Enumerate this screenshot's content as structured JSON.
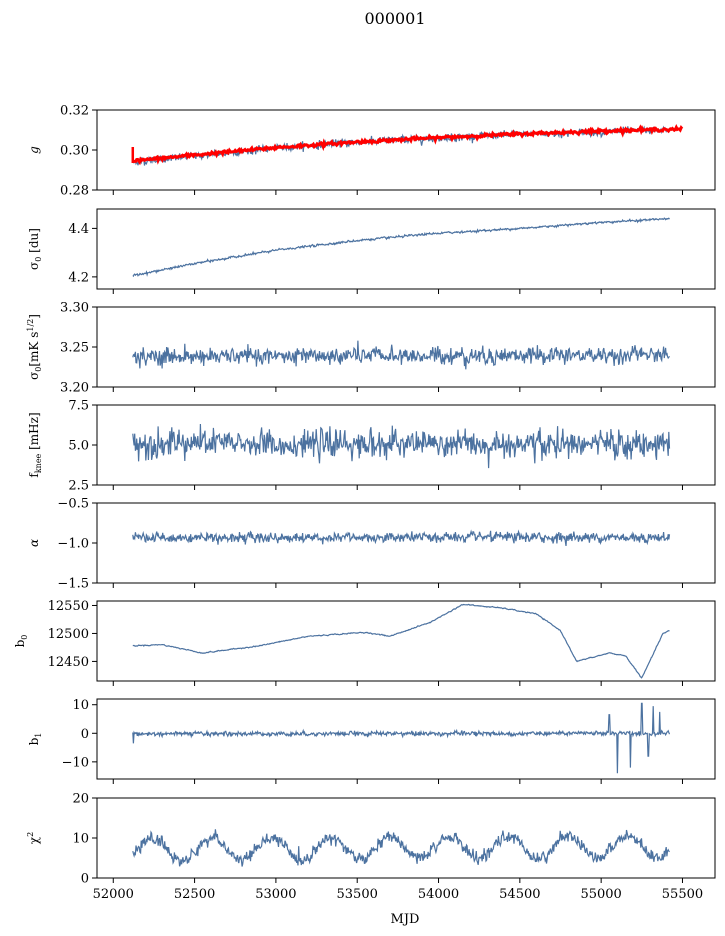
{
  "chart_data": {
    "title": "000001",
    "xlabel": "MJD",
    "xlim": [
      51900,
      55700
    ],
    "xticks": [
      52000,
      52500,
      53000,
      53500,
      54000,
      54500,
      55000,
      55500
    ],
    "x_range": [
      52120,
      55420
    ],
    "colors": {
      "series": "#4c72a0",
      "model": "#ff0000"
    },
    "panels": [
      {
        "id": "g",
        "type": "line",
        "ylabel": "g",
        "ylim": [
          0.28,
          0.32
        ],
        "yticks": [
          "0.28",
          "0.30",
          "0.32"
        ],
        "ytick_values": [
          0.28,
          0.3,
          0.32
        ],
        "trend": [
          [
            52120,
            0.294
          ],
          [
            52500,
            0.297
          ],
          [
            53000,
            0.301
          ],
          [
            53500,
            0.304
          ],
          [
            54000,
            0.306
          ],
          [
            54500,
            0.308
          ],
          [
            55000,
            0.309
          ],
          [
            55420,
            0.31
          ]
        ],
        "noise": 0.0012,
        "model": {
          "name": "fit",
          "color": "#ff0000",
          "trend": [
            [
              52120,
              0.2945
            ],
            [
              52500,
              0.2975
            ],
            [
              53000,
              0.3012
            ],
            [
              53500,
              0.304
            ],
            [
              54000,
              0.3062
            ],
            [
              54500,
              0.308
            ],
            [
              55000,
              0.3095
            ],
            [
              55500,
              0.3105
            ]
          ],
          "spike_at": 52120,
          "spike_range": [
            0.2935,
            0.3015
          ]
        }
      },
      {
        "id": "sigma0",
        "type": "line",
        "ylabel": "σ0 [du]",
        "ylim": [
          4.15,
          4.48
        ],
        "yticks": [
          "4.2",
          "4.4"
        ],
        "ytick_values": [
          4.2,
          4.4
        ],
        "trend": [
          [
            52120,
            4.205
          ],
          [
            52500,
            4.255
          ],
          [
            53000,
            4.31
          ],
          [
            53500,
            4.35
          ],
          [
            54000,
            4.38
          ],
          [
            54500,
            4.4
          ],
          [
            55000,
            4.425
          ],
          [
            55420,
            4.44
          ]
        ],
        "noise": 0.003
      },
      {
        "id": "sigma0_mK",
        "type": "line",
        "ylabel": "σ0[mK s1/2]",
        "ylim": [
          3.2,
          3.3
        ],
        "yticks": [
          "3.20",
          "3.25",
          "3.30"
        ],
        "ytick_values": [
          3.2,
          3.25,
          3.3
        ],
        "trend": [
          [
            52120,
            3.238
          ],
          [
            55420,
            3.24
          ]
        ],
        "noise": 0.007
      },
      {
        "id": "fknee",
        "type": "line",
        "ylabel": "fknee [mHz]",
        "ylim": [
          2.5,
          7.5
        ],
        "yticks": [
          "2.5",
          "5.0",
          "7.5"
        ],
        "ytick_values": [
          2.5,
          5.0,
          7.5
        ],
        "trend": [
          [
            52120,
            5.1
          ],
          [
            55420,
            5.0
          ]
        ],
        "noise": 0.55
      },
      {
        "id": "alpha",
        "type": "line",
        "ylabel": "α",
        "ylim": [
          -1.5,
          -0.5
        ],
        "yticks": [
          "−1.5",
          "−1.0",
          "−0.5"
        ],
        "ytick_values": [
          -1.5,
          -1.0,
          -0.5
        ],
        "trend": [
          [
            52120,
            -0.93
          ],
          [
            55420,
            -0.93
          ]
        ],
        "noise": 0.04
      },
      {
        "id": "b0",
        "type": "line",
        "ylabel": "b0",
        "ylim": [
          12415,
          12558
        ],
        "yticks": [
          "12450",
          "12500",
          "12550"
        ],
        "ytick_values": [
          12450,
          12500,
          12550
        ],
        "trend": [
          [
            52120,
            12478
          ],
          [
            52300,
            12480
          ],
          [
            52550,
            12465
          ],
          [
            52900,
            12478
          ],
          [
            53200,
            12495
          ],
          [
            53550,
            12502
          ],
          [
            53700,
            12495
          ],
          [
            53950,
            12520
          ],
          [
            54150,
            12552
          ],
          [
            54400,
            12545
          ],
          [
            54600,
            12535
          ],
          [
            54750,
            12505
          ],
          [
            54850,
            12450
          ],
          [
            55050,
            12465
          ],
          [
            55150,
            12460
          ],
          [
            55250,
            12420
          ],
          [
            55380,
            12500
          ],
          [
            55420,
            12505
          ]
        ],
        "noise": 1.5
      },
      {
        "id": "b1",
        "type": "line",
        "ylabel": "b1",
        "ylim": [
          -16,
          12
        ],
        "yticks": [
          "−10",
          "0",
          "10"
        ],
        "ytick_values": [
          -10,
          0,
          10
        ],
        "trend": [
          [
            52120,
            -0.2
          ],
          [
            55420,
            0.0
          ]
        ],
        "noise": 0.5,
        "spikes": [
          [
            52125,
            -3.5
          ],
          [
            55050,
            6.5
          ],
          [
            55100,
            -14
          ],
          [
            55180,
            -12
          ],
          [
            55250,
            10.5
          ],
          [
            55290,
            -8
          ],
          [
            55320,
            9.5
          ],
          [
            55360,
            7.5
          ]
        ]
      },
      {
        "id": "chi2",
        "type": "line",
        "ylabel": "χ2",
        "ylim": [
          0,
          20
        ],
        "yticks": [
          "0",
          "10",
          "20"
        ],
        "ytick_values": [
          0,
          10,
          20
        ],
        "trend": [
          [
            52120,
            7.0
          ],
          [
            55420,
            8.0
          ]
        ],
        "seasonal_amplitude": 2.8,
        "seasonal_period": 365.25,
        "noise": 1.0
      }
    ]
  }
}
